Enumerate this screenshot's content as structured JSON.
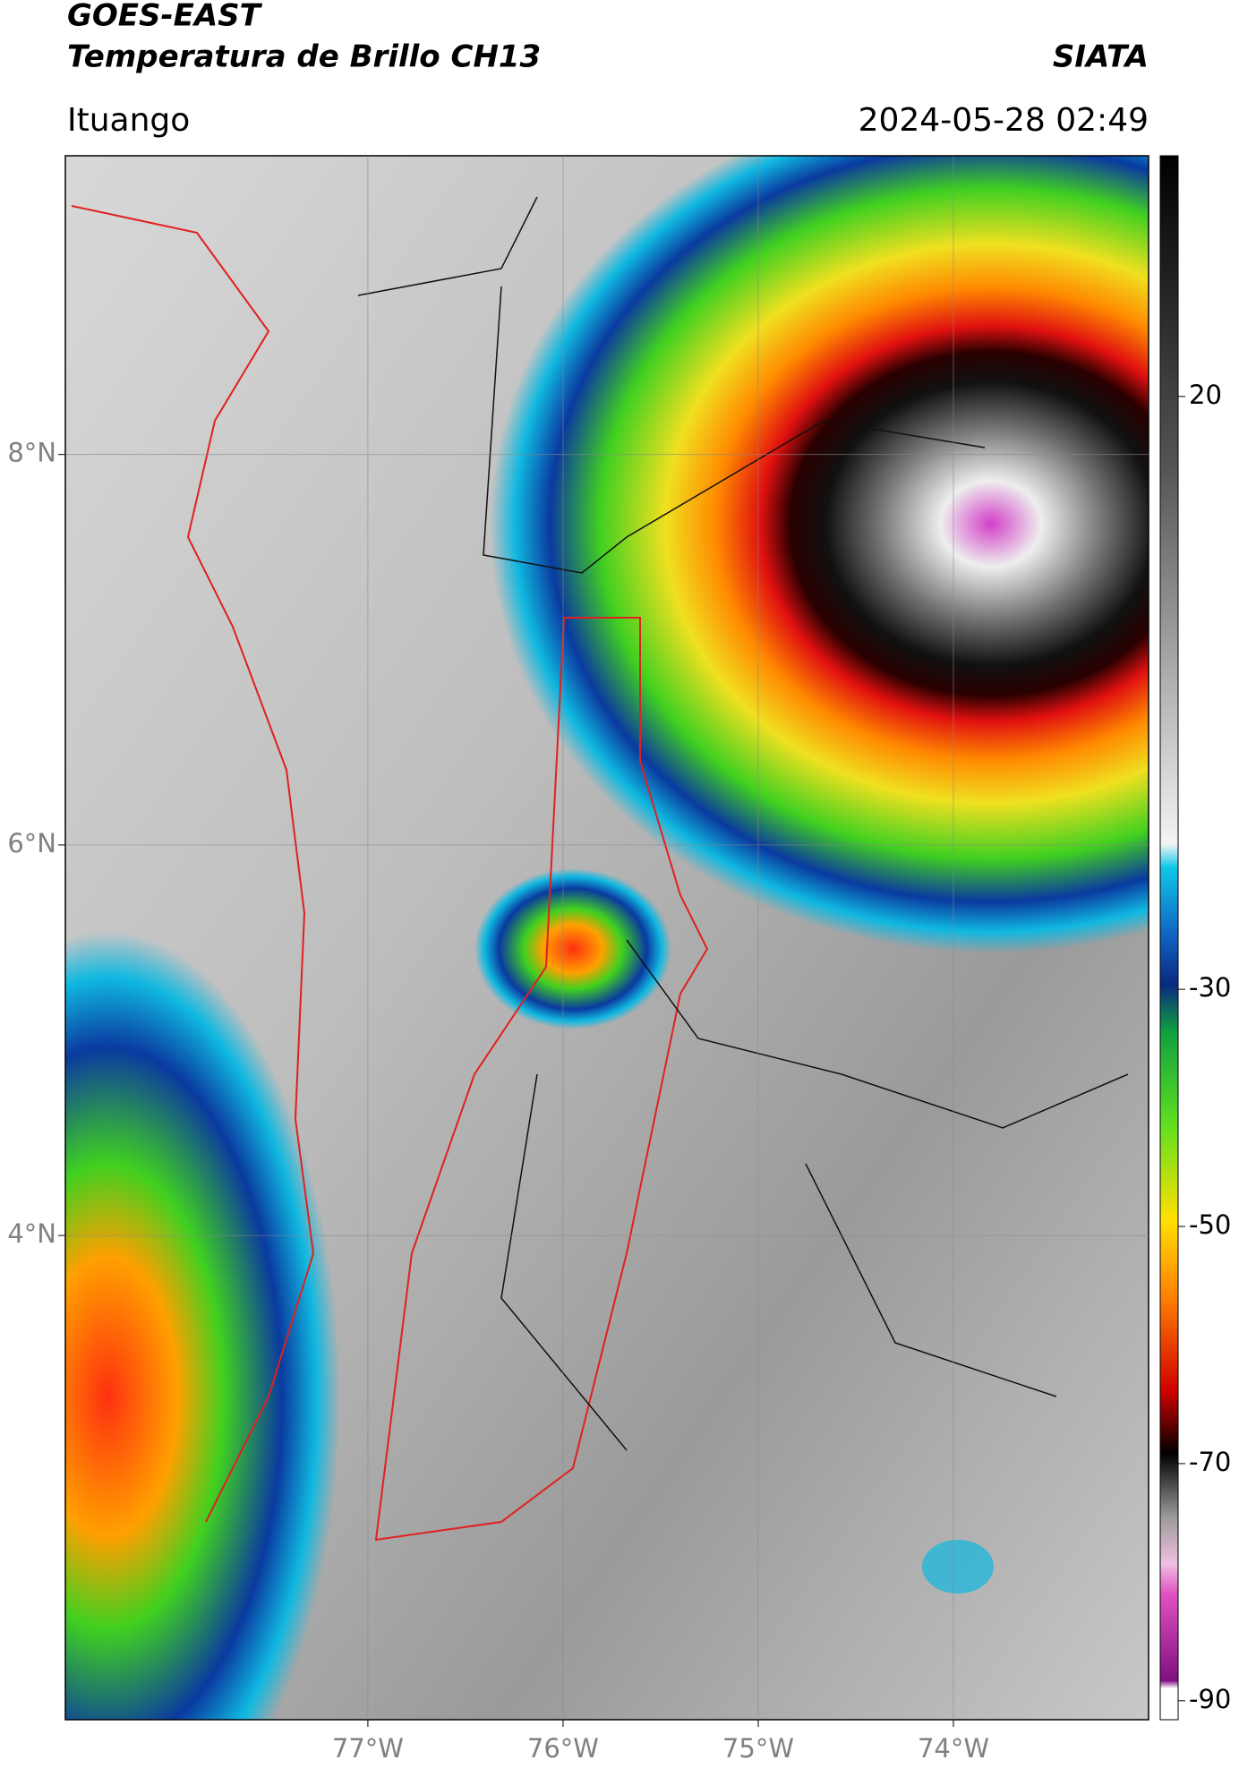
{
  "header": {
    "title": "GOES-EAST",
    "subtitle": "Temperatura de Brillo CH13",
    "source": "SIATA",
    "location": "Ituango",
    "datetime": "2024-05-28 02:49"
  },
  "map": {
    "xlim": [
      -78.55,
      -73.0
    ],
    "ylim": [
      1.52,
      9.53
    ],
    "xticks": [
      {
        "value": -77,
        "label": "77°W"
      },
      {
        "value": -76,
        "label": "76°W"
      },
      {
        "value": -75,
        "label": "75°W"
      },
      {
        "value": -74,
        "label": "74°W"
      }
    ],
    "yticks": [
      {
        "value": 8,
        "label": "8°N"
      },
      {
        "value": 6,
        "label": "6°N"
      },
      {
        "value": 4,
        "label": "4°N"
      }
    ]
  },
  "colorbar": {
    "lim": [
      -91.6,
      40.3
    ],
    "ticks": [
      20,
      -30,
      -50,
      -70,
      -90
    ]
  }
}
